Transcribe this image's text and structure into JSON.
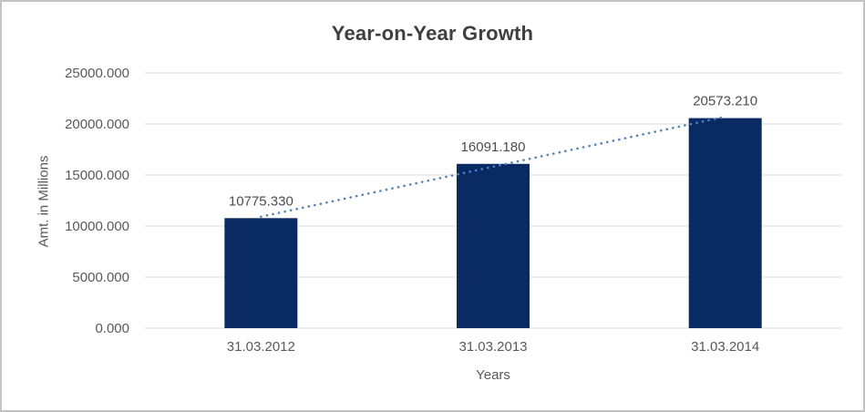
{
  "window": {
    "background_color": "#ffffff",
    "border_color": "#c3c3c3"
  },
  "chart_data": {
    "type": "bar",
    "title": "Year-on-Year Growth",
    "xlabel": "Years",
    "ylabel": "Amt. in Millions",
    "categories": [
      "31.03.2012",
      "31.03.2013",
      "31.03.2014"
    ],
    "values": [
      10775.33,
      16091.18,
      20573.21
    ],
    "data_labels": [
      "10775.330",
      "16091.180",
      "20573.210"
    ],
    "y_tick_values": [
      0,
      5000,
      10000,
      15000,
      20000,
      25000
    ],
    "y_tick_labels": [
      "0.000",
      "5000.000",
      "10000.000",
      "15000.000",
      "20000.000",
      "25000.000"
    ],
    "ylim": [
      0,
      25000
    ],
    "grid": true,
    "legend": "none",
    "bar_color": "#0a2a64",
    "gridline_color": "#d9d9d9",
    "tick_text_color": "#595959",
    "title_color": "#3f3f3f",
    "trendline": {
      "type": "linear",
      "style": "dotted",
      "color": "#4f82c2"
    }
  }
}
